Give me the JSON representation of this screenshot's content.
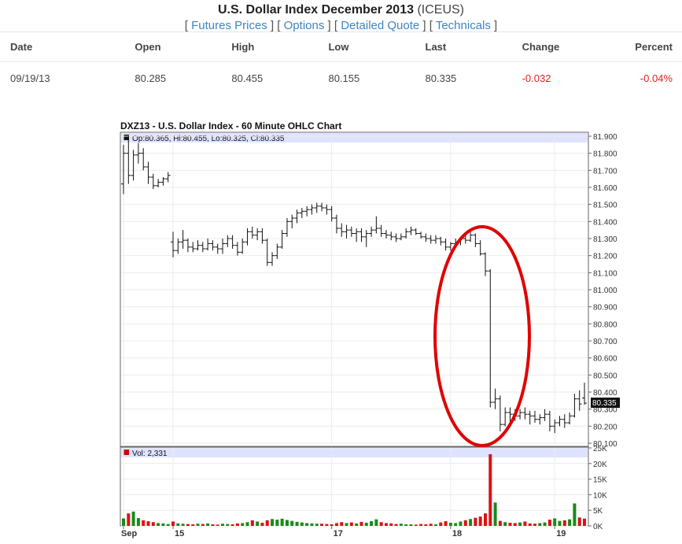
{
  "header": {
    "title": "U.S. Dollar Index December 2013",
    "symbol": "(ICEUS)",
    "links": [
      "Futures Prices",
      "Options",
      "Detailed Quote",
      "Technicals"
    ]
  },
  "quote": {
    "columns": [
      "Date",
      "Open",
      "High",
      "Low",
      "Last",
      "Change",
      "Percent"
    ],
    "row": {
      "date": "09/19/13",
      "open": "80.285",
      "high": "80.455",
      "low": "80.155",
      "last": "80.335",
      "change": "-0.032",
      "percent": "-0.04%"
    }
  },
  "chart_data": {
    "type": "ohlc",
    "title": "DXZ13 - U.S. Dollar Index - 60 Minute OHLC Chart",
    "ohlc_readout": "Op:80.365, Hi:80.455, Lo:80.325, Cl:80.335",
    "volume_readout": "Vol: 2,331",
    "last_price_label": "80.335",
    "price_axis": {
      "ylim": [
        80.1,
        81.9
      ],
      "ticks": [
        "81.900",
        "81.800",
        "81.700",
        "81.600",
        "81.500",
        "81.400",
        "81.300",
        "81.200",
        "81.100",
        "81.000",
        "80.900",
        "80.800",
        "80.700",
        "80.600",
        "80.500",
        "80.400",
        "80.300",
        "80.200",
        "80.100"
      ]
    },
    "volume_axis": {
      "ylim": [
        0,
        25000
      ],
      "ticks": [
        "25K",
        "20K",
        "15K",
        "10K",
        "5K",
        "0K"
      ]
    },
    "x_axis": {
      "ticks": [
        {
          "label": "Sep",
          "bar": 0
        },
        {
          "label": "15",
          "bar": 10
        },
        {
          "label": "17",
          "bar": 42
        },
        {
          "label": "18",
          "bar": 66
        },
        {
          "label": "19",
          "bar": 87
        }
      ]
    },
    "bars": [
      {
        "o": 81.62,
        "h": 81.85,
        "l": 81.56,
        "c": 81.8,
        "v": 2400
      },
      {
        "o": 81.8,
        "h": 81.9,
        "l": 81.62,
        "c": 81.67,
        "v": 4000
      },
      {
        "o": 81.67,
        "h": 81.82,
        "l": 81.64,
        "c": 81.79,
        "v": 4600
      },
      {
        "o": 81.79,
        "h": 81.86,
        "l": 81.74,
        "c": 81.8,
        "v": 2500
      },
      {
        "o": 81.8,
        "h": 81.83,
        "l": 81.7,
        "c": 81.72,
        "v": 1800
      },
      {
        "o": 81.72,
        "h": 81.75,
        "l": 81.62,
        "c": 81.66,
        "v": 1500
      },
      {
        "o": 81.66,
        "h": 81.68,
        "l": 81.59,
        "c": 81.61,
        "v": 1200
      },
      {
        "o": 81.61,
        "h": 81.65,
        "l": 81.6,
        "c": 81.63,
        "v": 900
      },
      {
        "o": 81.63,
        "h": 81.66,
        "l": 81.61,
        "c": 81.65,
        "v": 800
      },
      {
        "o": 81.65,
        "h": 81.69,
        "l": 81.63,
        "c": 81.67,
        "v": 600
      },
      {
        "o": 81.28,
        "h": 81.34,
        "l": 81.19,
        "c": 81.23,
        "v": 1400
      },
      {
        "o": 81.23,
        "h": 81.3,
        "l": 81.21,
        "c": 81.28,
        "v": 800
      },
      {
        "o": 81.28,
        "h": 81.35,
        "l": 81.24,
        "c": 81.29,
        "v": 700
      },
      {
        "o": 81.29,
        "h": 81.3,
        "l": 81.22,
        "c": 81.25,
        "v": 600
      },
      {
        "o": 81.25,
        "h": 81.28,
        "l": 81.22,
        "c": 81.24,
        "v": 500
      },
      {
        "o": 81.24,
        "h": 81.29,
        "l": 81.23,
        "c": 81.26,
        "v": 700
      },
      {
        "o": 81.26,
        "h": 81.28,
        "l": 81.22,
        "c": 81.24,
        "v": 600
      },
      {
        "o": 81.24,
        "h": 81.3,
        "l": 81.23,
        "c": 81.27,
        "v": 800
      },
      {
        "o": 81.27,
        "h": 81.29,
        "l": 81.23,
        "c": 81.25,
        "v": 500
      },
      {
        "o": 81.25,
        "h": 81.27,
        "l": 81.21,
        "c": 81.24,
        "v": 400
      },
      {
        "o": 81.24,
        "h": 81.3,
        "l": 81.21,
        "c": 81.27,
        "v": 700
      },
      {
        "o": 81.27,
        "h": 81.32,
        "l": 81.25,
        "c": 81.3,
        "v": 600
      },
      {
        "o": 81.3,
        "h": 81.32,
        "l": 81.24,
        "c": 81.26,
        "v": 500
      },
      {
        "o": 81.26,
        "h": 81.28,
        "l": 81.2,
        "c": 81.22,
        "v": 800
      },
      {
        "o": 81.22,
        "h": 81.3,
        "l": 81.21,
        "c": 81.28,
        "v": 900
      },
      {
        "o": 81.28,
        "h": 81.36,
        "l": 81.26,
        "c": 81.34,
        "v": 1200
      },
      {
        "o": 81.34,
        "h": 81.37,
        "l": 81.3,
        "c": 81.32,
        "v": 1800
      },
      {
        "o": 81.32,
        "h": 81.36,
        "l": 81.29,
        "c": 81.34,
        "v": 1400
      },
      {
        "o": 81.34,
        "h": 81.36,
        "l": 81.27,
        "c": 81.29,
        "v": 1000
      },
      {
        "o": 81.29,
        "h": 81.3,
        "l": 81.14,
        "c": 81.16,
        "v": 1800
      },
      {
        "o": 81.16,
        "h": 81.22,
        "l": 81.14,
        "c": 81.2,
        "v": 2200
      },
      {
        "o": 81.2,
        "h": 81.27,
        "l": 81.18,
        "c": 81.25,
        "v": 2000
      },
      {
        "o": 81.25,
        "h": 81.35,
        "l": 81.24,
        "c": 81.33,
        "v": 2300
      },
      {
        "o": 81.33,
        "h": 81.42,
        "l": 81.31,
        "c": 81.4,
        "v": 1900
      },
      {
        "o": 81.4,
        "h": 81.44,
        "l": 81.36,
        "c": 81.42,
        "v": 1600
      },
      {
        "o": 81.42,
        "h": 81.47,
        "l": 81.39,
        "c": 81.45,
        "v": 1300
      },
      {
        "o": 81.45,
        "h": 81.48,
        "l": 81.42,
        "c": 81.46,
        "v": 1100
      },
      {
        "o": 81.46,
        "h": 81.49,
        "l": 81.43,
        "c": 81.47,
        "v": 900
      },
      {
        "o": 81.47,
        "h": 81.5,
        "l": 81.44,
        "c": 81.48,
        "v": 800
      },
      {
        "o": 81.48,
        "h": 81.51,
        "l": 81.45,
        "c": 81.49,
        "v": 700
      },
      {
        "o": 81.49,
        "h": 81.51,
        "l": 81.46,
        "c": 81.48,
        "v": 700
      },
      {
        "o": 81.48,
        "h": 81.5,
        "l": 81.44,
        "c": 81.47,
        "v": 600
      },
      {
        "o": 81.47,
        "h": 81.49,
        "l": 81.4,
        "c": 81.42,
        "v": 500
      },
      {
        "o": 81.42,
        "h": 81.44,
        "l": 81.33,
        "c": 81.36,
        "v": 900
      },
      {
        "o": 81.36,
        "h": 81.39,
        "l": 81.31,
        "c": 81.34,
        "v": 1200
      },
      {
        "o": 81.34,
        "h": 81.38,
        "l": 81.3,
        "c": 81.35,
        "v": 900
      },
      {
        "o": 81.35,
        "h": 81.37,
        "l": 81.31,
        "c": 81.33,
        "v": 1100
      },
      {
        "o": 81.33,
        "h": 81.36,
        "l": 81.28,
        "c": 81.34,
        "v": 800
      },
      {
        "o": 81.34,
        "h": 81.36,
        "l": 81.28,
        "c": 81.31,
        "v": 1300
      },
      {
        "o": 81.31,
        "h": 81.35,
        "l": 81.25,
        "c": 81.33,
        "v": 1000
      },
      {
        "o": 81.33,
        "h": 81.37,
        "l": 81.31,
        "c": 81.35,
        "v": 1500
      },
      {
        "o": 81.35,
        "h": 81.43,
        "l": 81.33,
        "c": 81.36,
        "v": 2100
      },
      {
        "o": 81.36,
        "h": 81.38,
        "l": 81.31,
        "c": 81.33,
        "v": 1200
      },
      {
        "o": 81.33,
        "h": 81.35,
        "l": 81.3,
        "c": 81.32,
        "v": 900
      },
      {
        "o": 81.32,
        "h": 81.34,
        "l": 81.29,
        "c": 81.31,
        "v": 800
      },
      {
        "o": 81.31,
        "h": 81.33,
        "l": 81.28,
        "c": 81.3,
        "v": 600
      },
      {
        "o": 81.3,
        "h": 81.33,
        "l": 81.29,
        "c": 81.31,
        "v": 700
      },
      {
        "o": 81.31,
        "h": 81.36,
        "l": 81.3,
        "c": 81.34,
        "v": 500
      },
      {
        "o": 81.34,
        "h": 81.37,
        "l": 81.32,
        "c": 81.35,
        "v": 500
      },
      {
        "o": 81.35,
        "h": 81.36,
        "l": 81.32,
        "c": 81.33,
        "v": 400
      },
      {
        "o": 81.33,
        "h": 81.34,
        "l": 81.3,
        "c": 81.31,
        "v": 600
      },
      {
        "o": 81.31,
        "h": 81.33,
        "l": 81.28,
        "c": 81.3,
        "v": 500
      },
      {
        "o": 81.3,
        "h": 81.32,
        "l": 81.27,
        "c": 81.29,
        "v": 700
      },
      {
        "o": 81.29,
        "h": 81.32,
        "l": 81.27,
        "c": 81.3,
        "v": 500
      },
      {
        "o": 81.3,
        "h": 81.31,
        "l": 81.26,
        "c": 81.28,
        "v": 1100
      },
      {
        "o": 81.28,
        "h": 81.3,
        "l": 81.23,
        "c": 81.25,
        "v": 1500
      },
      {
        "o": 81.25,
        "h": 81.28,
        "l": 81.23,
        "c": 81.27,
        "v": 1000
      },
      {
        "o": 81.27,
        "h": 81.3,
        "l": 81.25,
        "c": 81.28,
        "v": 900
      },
      {
        "o": 81.28,
        "h": 81.31,
        "l": 81.26,
        "c": 81.3,
        "v": 1400
      },
      {
        "o": 81.3,
        "h": 81.32,
        "l": 81.27,
        "c": 81.29,
        "v": 1800
      },
      {
        "o": 81.29,
        "h": 81.34,
        "l": 81.28,
        "c": 81.32,
        "v": 2200
      },
      {
        "o": 81.32,
        "h": 81.33,
        "l": 81.25,
        "c": 81.27,
        "v": 2600
      },
      {
        "o": 81.27,
        "h": 81.29,
        "l": 81.2,
        "c": 81.21,
        "v": 3000
      },
      {
        "o": 81.21,
        "h": 81.22,
        "l": 81.08,
        "c": 81.11,
        "v": 4000
      },
      {
        "o": 81.11,
        "h": 81.12,
        "l": 80.31,
        "c": 80.34,
        "v": 23000
      },
      {
        "o": 80.34,
        "h": 80.42,
        "l": 80.3,
        "c": 80.36,
        "v": 7500
      },
      {
        "o": 80.36,
        "h": 80.38,
        "l": 80.17,
        "c": 80.21,
        "v": 1600
      },
      {
        "o": 80.21,
        "h": 80.31,
        "l": 80.2,
        "c": 80.28,
        "v": 1200
      },
      {
        "o": 80.28,
        "h": 80.31,
        "l": 80.22,
        "c": 80.27,
        "v": 1000
      },
      {
        "o": 80.27,
        "h": 80.3,
        "l": 80.23,
        "c": 80.26,
        "v": 900
      },
      {
        "o": 80.26,
        "h": 80.3,
        "l": 80.24,
        "c": 80.28,
        "v": 1100
      },
      {
        "o": 80.28,
        "h": 80.31,
        "l": 80.24,
        "c": 80.27,
        "v": 1400
      },
      {
        "o": 80.27,
        "h": 80.29,
        "l": 80.21,
        "c": 80.26,
        "v": 800
      },
      {
        "o": 80.26,
        "h": 80.29,
        "l": 80.22,
        "c": 80.24,
        "v": 700
      },
      {
        "o": 80.24,
        "h": 80.27,
        "l": 80.21,
        "c": 80.25,
        "v": 900
      },
      {
        "o": 80.25,
        "h": 80.3,
        "l": 80.23,
        "c": 80.27,
        "v": 1100
      },
      {
        "o": 80.27,
        "h": 80.29,
        "l": 80.17,
        "c": 80.2,
        "v": 2000
      },
      {
        "o": 80.2,
        "h": 80.24,
        "l": 80.16,
        "c": 80.22,
        "v": 2400
      },
      {
        "o": 80.22,
        "h": 80.26,
        "l": 80.2,
        "c": 80.24,
        "v": 1600
      },
      {
        "o": 80.24,
        "h": 80.27,
        "l": 80.19,
        "c": 80.22,
        "v": 1800
      },
      {
        "o": 80.22,
        "h": 80.28,
        "l": 80.21,
        "c": 80.26,
        "v": 2100
      },
      {
        "o": 80.26,
        "h": 80.39,
        "l": 80.25,
        "c": 80.36,
        "v": 7200
      },
      {
        "o": 80.36,
        "h": 80.41,
        "l": 80.29,
        "c": 80.33,
        "v": 2700
      },
      {
        "o": 80.365,
        "h": 80.455,
        "l": 80.325,
        "c": 80.335,
        "v": 2331
      }
    ]
  }
}
